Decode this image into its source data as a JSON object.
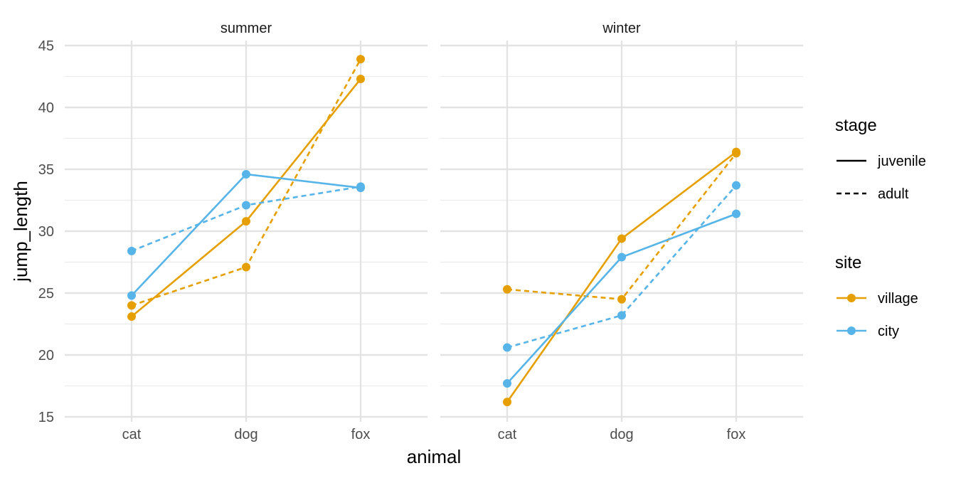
{
  "chart_data": {
    "type": "line",
    "xlabel": "animal",
    "ylabel": "jump_length",
    "categories": [
      "cat",
      "dog",
      "fox"
    ],
    "ylim": [
      15,
      45
    ],
    "yticks": [
      15,
      20,
      25,
      30,
      35,
      40,
      45
    ],
    "grid": true,
    "facets": [
      {
        "label": "summer",
        "series": [
          {
            "site": "village",
            "stage": "juvenile",
            "values": [
              23.1,
              30.8,
              42.3
            ]
          },
          {
            "site": "village",
            "stage": "adult",
            "values": [
              24.0,
              27.1,
              43.9
            ]
          },
          {
            "site": "city",
            "stage": "juvenile",
            "values": [
              24.8,
              34.6,
              33.5
            ]
          },
          {
            "site": "city",
            "stage": "adult",
            "values": [
              28.4,
              32.1,
              33.6
            ]
          }
        ]
      },
      {
        "label": "winter",
        "series": [
          {
            "site": "village",
            "stage": "juvenile",
            "values": [
              16.2,
              29.4,
              36.4
            ]
          },
          {
            "site": "village",
            "stage": "adult",
            "values": [
              25.3,
              24.5,
              36.3
            ]
          },
          {
            "site": "city",
            "stage": "juvenile",
            "values": [
              17.7,
              27.9,
              31.4
            ]
          },
          {
            "site": "city",
            "stage": "adult",
            "values": [
              20.6,
              23.2,
              33.7
            ]
          }
        ]
      }
    ],
    "legend": {
      "position": "right",
      "stage": {
        "title": "stage",
        "items": [
          {
            "label": "juvenile",
            "dash": "solid"
          },
          {
            "label": "adult",
            "dash": "dashed"
          }
        ]
      },
      "site": {
        "title": "site",
        "items": [
          {
            "label": "village",
            "color": "#E69F00"
          },
          {
            "label": "city",
            "color": "#56B4E9"
          }
        ]
      }
    },
    "colors": {
      "village": "#E69F00",
      "city": "#56B4E9"
    }
  }
}
